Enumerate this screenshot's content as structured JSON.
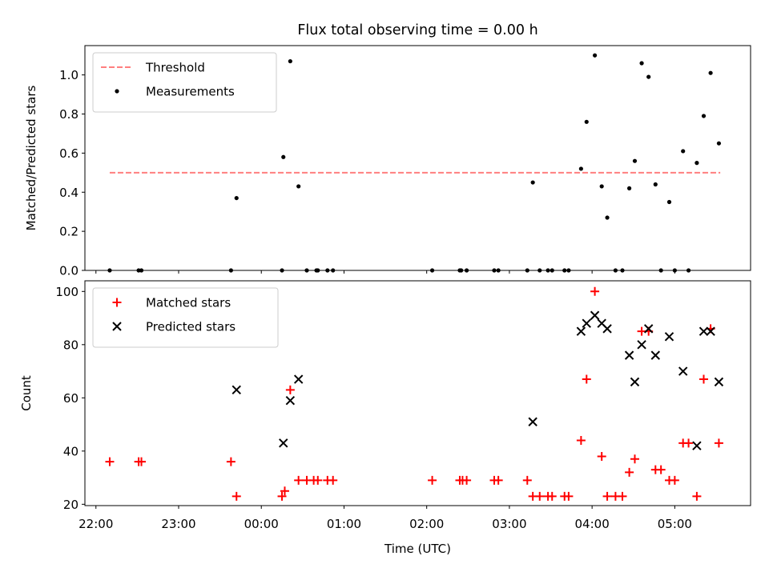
{
  "chart_data": {
    "title": "Flux total observing time = 0.00 h",
    "x_axis": {
      "label": "Time (UTC)",
      "type": "time",
      "range": [
        "21:52",
        "05:55"
      ],
      "ticks": [
        "22:00",
        "23:00",
        "00:00",
        "01:00",
        "02:00",
        "03:00",
        "04:00",
        "05:00"
      ]
    },
    "panels": [
      {
        "type": "scatter",
        "ylabel": "Matched/Predicted stars",
        "ylim": [
          0.0,
          1.15
        ],
        "yticks": [
          "0.0",
          "0.2",
          "0.4",
          "0.6",
          "0.8",
          "1.0"
        ],
        "legend_position": "top-left",
        "series": [
          {
            "name": "Threshold",
            "type": "line",
            "style": "dashed",
            "color": "#ff7f7f",
            "x": [
              "22:10",
              "05:33"
            ],
            "y": [
              0.5,
              0.5
            ]
          },
          {
            "name": "Measurements",
            "type": "scatter",
            "marker": "dot",
            "color": "#000000",
            "points": [
              [
                "22:10",
                0.0
              ],
              [
                "22:31",
                0.0
              ],
              [
                "22:33",
                0.0
              ],
              [
                "23:38",
                0.0
              ],
              [
                "23:42",
                0.37
              ],
              [
                "00:15",
                0.0
              ],
              [
                "00:16",
                0.58
              ],
              [
                "00:21",
                1.07
              ],
              [
                "00:27",
                0.43
              ],
              [
                "00:33",
                0.0
              ],
              [
                "00:40",
                0.0
              ],
              [
                "00:41",
                0.0
              ],
              [
                "00:48",
                0.0
              ],
              [
                "00:52",
                0.0
              ],
              [
                "02:04",
                0.0
              ],
              [
                "02:24",
                0.0
              ],
              [
                "02:25",
                0.0
              ],
              [
                "02:29",
                0.0
              ],
              [
                "02:49",
                0.0
              ],
              [
                "02:52",
                0.0
              ],
              [
                "03:13",
                0.0
              ],
              [
                "03:17",
                0.45
              ],
              [
                "03:22",
                0.0
              ],
              [
                "03:28",
                0.0
              ],
              [
                "03:31",
                0.0
              ],
              [
                "03:40",
                0.0
              ],
              [
                "03:43",
                0.0
              ],
              [
                "03:52",
                0.52
              ],
              [
                "03:56",
                0.76
              ],
              [
                "04:02",
                1.1
              ],
              [
                "04:07",
                0.43
              ],
              [
                "04:11",
                0.27
              ],
              [
                "04:17",
                0.0
              ],
              [
                "04:22",
                0.0
              ],
              [
                "04:27",
                0.42
              ],
              [
                "04:31",
                0.56
              ],
              [
                "04:36",
                1.06
              ],
              [
                "04:41",
                0.99
              ],
              [
                "04:46",
                0.44
              ],
              [
                "04:50",
                0.0
              ],
              [
                "04:56",
                0.35
              ],
              [
                "05:00",
                0.0
              ],
              [
                "05:06",
                0.61
              ],
              [
                "05:10",
                0.0
              ],
              [
                "05:16",
                0.55
              ],
              [
                "05:21",
                0.79
              ],
              [
                "05:26",
                1.01
              ],
              [
                "05:32",
                0.65
              ]
            ]
          }
        ]
      },
      {
        "type": "scatter",
        "ylabel": "Count",
        "ylim": [
          19.5,
          104
        ],
        "yticks": [
          "20",
          "40",
          "60",
          "80",
          "100"
        ],
        "legend_position": "top-left",
        "series": [
          {
            "name": "Matched stars",
            "type": "scatter",
            "marker": "plus",
            "color": "#ff0000",
            "points": [
              [
                "22:10",
                36
              ],
              [
                "22:31",
                36
              ],
              [
                "22:33",
                36
              ],
              [
                "23:38",
                36
              ],
              [
                "23:42",
                23
              ],
              [
                "00:15",
                23
              ],
              [
                "00:17",
                25
              ],
              [
                "00:21",
                63
              ],
              [
                "00:27",
                29
              ],
              [
                "00:33",
                29
              ],
              [
                "00:38",
                29
              ],
              [
                "00:41",
                29
              ],
              [
                "00:48",
                29
              ],
              [
                "00:52",
                29
              ],
              [
                "02:04",
                29
              ],
              [
                "02:24",
                29
              ],
              [
                "02:26",
                29
              ],
              [
                "02:29",
                29
              ],
              [
                "02:49",
                29
              ],
              [
                "02:52",
                29
              ],
              [
                "03:13",
                29
              ],
              [
                "03:17",
                23
              ],
              [
                "03:22",
                23
              ],
              [
                "03:28",
                23
              ],
              [
                "03:31",
                23
              ],
              [
                "03:40",
                23
              ],
              [
                "03:43",
                23
              ],
              [
                "03:52",
                44
              ],
              [
                "03:56",
                67
              ],
              [
                "04:02",
                100
              ],
              [
                "04:07",
                38
              ],
              [
                "04:11",
                23
              ],
              [
                "04:17",
                23
              ],
              [
                "04:22",
                23
              ],
              [
                "04:27",
                32
              ],
              [
                "04:31",
                37
              ],
              [
                "04:36",
                85
              ],
              [
                "04:41",
                85
              ],
              [
                "04:46",
                33
              ],
              [
                "04:50",
                33
              ],
              [
                "04:56",
                29
              ],
              [
                "05:00",
                29
              ],
              [
                "05:06",
                43
              ],
              [
                "05:10",
                43
              ],
              [
                "05:16",
                23
              ],
              [
                "05:21",
                67
              ],
              [
                "05:26",
                86
              ],
              [
                "05:32",
                43
              ]
            ]
          },
          {
            "name": "Predicted stars",
            "type": "scatter",
            "marker": "x",
            "color": "#000000",
            "points": [
              [
                "23:42",
                63
              ],
              [
                "00:16",
                43
              ],
              [
                "00:21",
                59
              ],
              [
                "00:27",
                67
              ],
              [
                "03:17",
                51
              ],
              [
                "03:52",
                85
              ],
              [
                "03:56",
                88
              ],
              [
                "04:02",
                91
              ],
              [
                "04:07",
                88
              ],
              [
                "04:11",
                86
              ],
              [
                "04:27",
                76
              ],
              [
                "04:31",
                66
              ],
              [
                "04:36",
                80
              ],
              [
                "04:41",
                86
              ],
              [
                "04:46",
                76
              ],
              [
                "04:56",
                83
              ],
              [
                "05:06",
                70
              ],
              [
                "05:16",
                42
              ],
              [
                "05:21",
                85
              ],
              [
                "05:26",
                85
              ],
              [
                "05:32",
                66
              ]
            ]
          }
        ]
      }
    ]
  }
}
